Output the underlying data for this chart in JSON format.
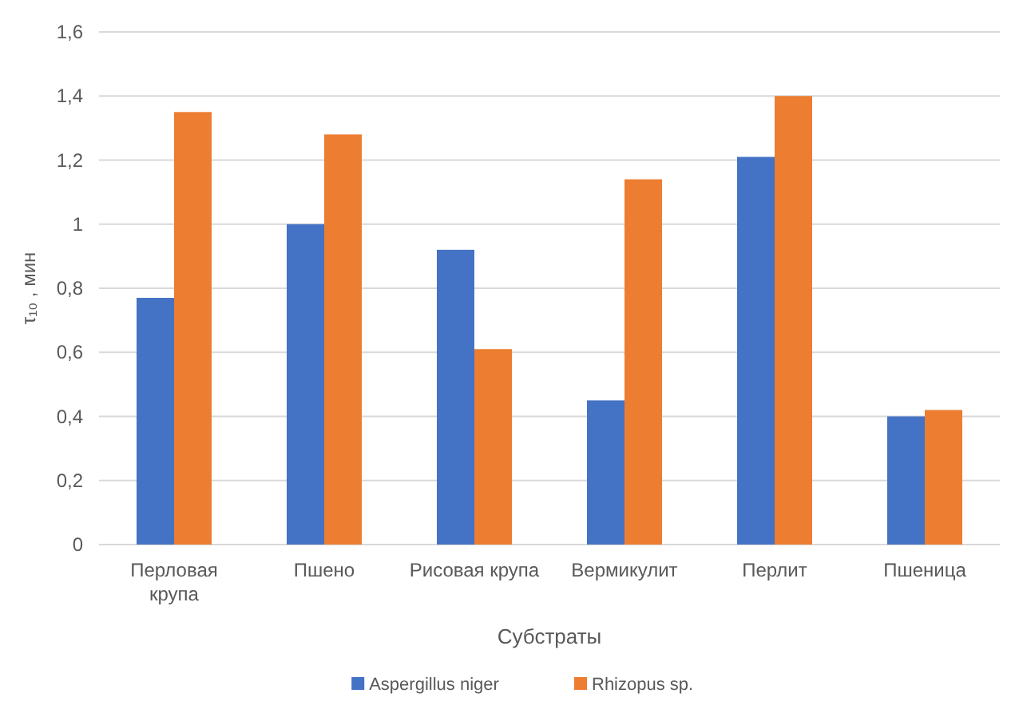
{
  "chart_data": {
    "type": "bar",
    "xlabel": "Субстраты",
    "ylabel": "τ₁₀ , мин",
    "categories": [
      "Перловая крупа",
      "Пшено",
      "Рисовая крупа",
      "Вермикулит",
      "Перлит",
      "Пшеница"
    ],
    "series": [
      {
        "name": "Aspergillus niger",
        "color": "#4472c4",
        "values": [
          0.77,
          1.0,
          0.92,
          0.45,
          1.21,
          0.4
        ]
      },
      {
        "name": "Rhizopus sp.",
        "color": "#ed7d31",
        "values": [
          1.35,
          1.28,
          0.61,
          1.14,
          1.4,
          0.42
        ]
      }
    ],
    "ylim": [
      0,
      1.6
    ],
    "yticks": [
      {
        "value": 0,
        "label": "0"
      },
      {
        "value": 0.2,
        "label": "0,2"
      },
      {
        "value": 0.4,
        "label": "0,4"
      },
      {
        "value": 0.6,
        "label": "0,6"
      },
      {
        "value": 0.8,
        "label": "0,8"
      },
      {
        "value": 1,
        "label": "1"
      },
      {
        "value": 1.2,
        "label": "1,2"
      },
      {
        "value": 1.4,
        "label": "1,4"
      },
      {
        "value": 1.6,
        "label": "1,6"
      }
    ],
    "grid": "y",
    "legend": "bottom"
  }
}
